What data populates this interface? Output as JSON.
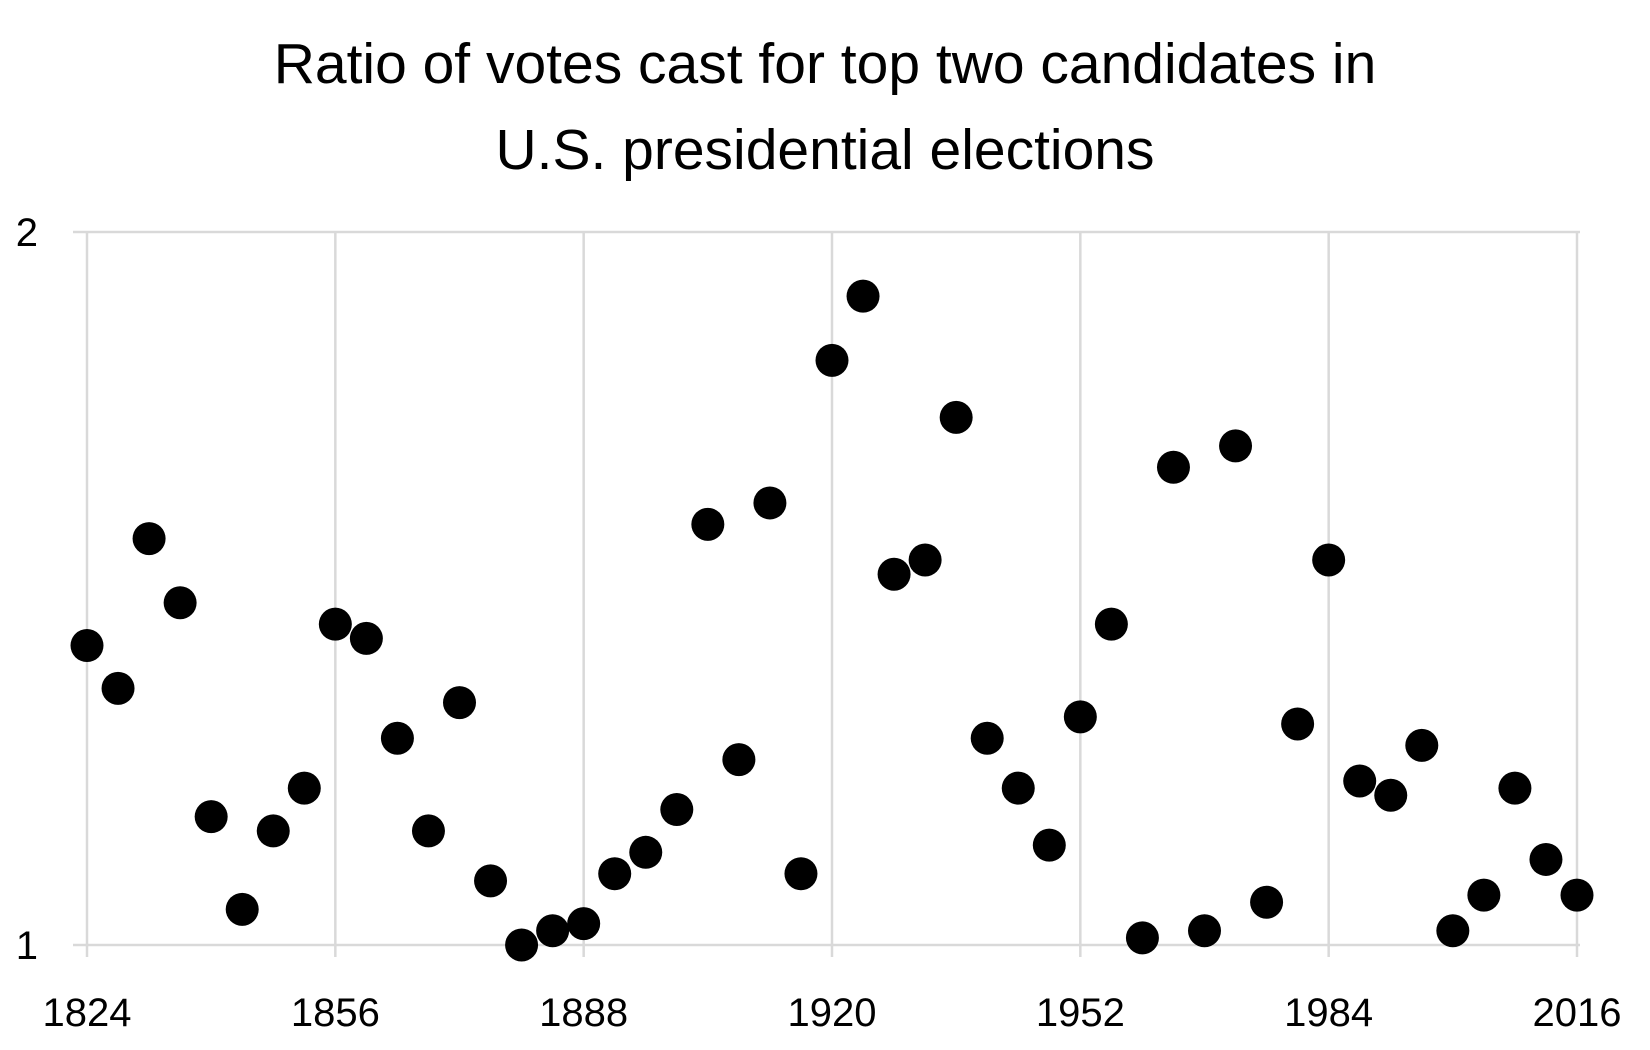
{
  "chart_data": {
    "type": "scatter",
    "title_lines": [
      "Ratio of votes cast for top two candidates in",
      "U.S. presidential elections"
    ],
    "title": "Ratio of votes cast for top two candidates in U.S. presidential elections",
    "xlabel": "",
    "ylabel": "",
    "xlim": [
      1824,
      2016
    ],
    "ylim": [
      1,
      2
    ],
    "x_ticks": [
      1824,
      1856,
      1888,
      1920,
      1952,
      1984,
      2016
    ],
    "y_ticks": [
      1,
      2
    ],
    "grid": {
      "vertical": true,
      "horizontal": true
    },
    "legend": "none",
    "marker_color": "#000000",
    "grid_color": "#d9d9d9",
    "series": [
      {
        "x": [
          1824,
          1828,
          1832,
          1836,
          1840,
          1844,
          1848,
          1852,
          1856,
          1860,
          1864,
          1868,
          1872,
          1876,
          1880,
          1884,
          1888,
          1892,
          1896,
          1900,
          1904,
          1908,
          1912,
          1916,
          1920,
          1924,
          1928,
          1932,
          1936,
          1940,
          1944,
          1948,
          1952,
          1956,
          1960,
          1964,
          1968,
          1972,
          1976,
          1980,
          1984,
          1988,
          1992,
          1996,
          2000,
          2004,
          2008,
          2012,
          2016
        ],
        "y": [
          1.42,
          1.36,
          1.57,
          1.48,
          1.18,
          1.05,
          1.16,
          1.22,
          1.45,
          1.43,
          1.29,
          1.16,
          1.34,
          1.09,
          1.0,
          1.02,
          1.03,
          1.1,
          1.13,
          1.19,
          1.59,
          1.26,
          1.62,
          1.1,
          1.82,
          1.91,
          1.52,
          1.54,
          1.74,
          1.29,
          1.22,
          1.14,
          1.32,
          1.45,
          1.01,
          1.67,
          1.02,
          1.7,
          1.06,
          1.31,
          1.54,
          1.23,
          1.21,
          1.28,
          1.02,
          1.07,
          1.22,
          1.12,
          1.07
        ]
      }
    ]
  }
}
